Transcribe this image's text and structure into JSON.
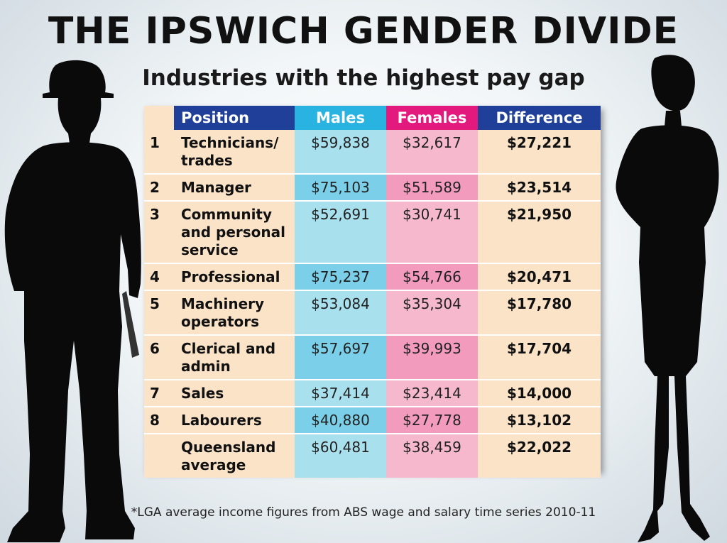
{
  "title": "THE IPSWICH GENDER DIVIDE",
  "subtitle": "Industries with the highest pay gap",
  "footnote": "*LGA average income figures from ABS wage and salary time series 2010-11",
  "colors": {
    "header_navy": "#1f3f99",
    "header_males": "#29b3e0",
    "header_females": "#e4197e",
    "cell_peach": "#fbe3c8",
    "cell_males": "#a9e0ee",
    "cell_females": "#f6b8cd"
  },
  "chart_data": {
    "type": "table",
    "columns": [
      "Position",
      "Males",
      "Females",
      "Difference"
    ],
    "rows": [
      {
        "rank": "1",
        "position": "Technicians/ trades",
        "males": "$59,838",
        "females": "$32,617",
        "difference": "$27,221"
      },
      {
        "rank": "2",
        "position": "Manager",
        "males": "$75,103",
        "females": "$51,589",
        "difference": "$23,514"
      },
      {
        "rank": "3",
        "position": "Community and personal service",
        "males": "$52,691",
        "females": "$30,741",
        "difference": "$21,950"
      },
      {
        "rank": "4",
        "position": "Professional",
        "males": "$75,237",
        "females": "$54,766",
        "difference": "$20,471"
      },
      {
        "rank": "5",
        "position": "Machinery operators",
        "males": "$53,084",
        "females": "$35,304",
        "difference": "$17,780"
      },
      {
        "rank": "6",
        "position": "Clerical and admin",
        "males": "$57,697",
        "females": "$39,993",
        "difference": "$17,704"
      },
      {
        "rank": "7",
        "position": "Sales",
        "males": "$37,414",
        "females": "$23,414",
        "difference": "$14,000"
      },
      {
        "rank": "8",
        "position": "Labourers",
        "males": "$40,880",
        "females": "$27,778",
        "difference": "$13,102"
      },
      {
        "rank": "",
        "position": "Queensland average",
        "males": "$60,481",
        "females": "$38,459",
        "difference": "$22,022"
      }
    ]
  },
  "illustrations": {
    "left": "male-worker-silhouette",
    "right": "female-businesswoman-silhouette"
  }
}
